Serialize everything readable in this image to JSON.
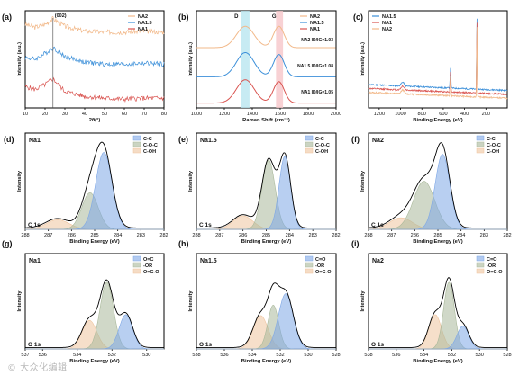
{
  "watermark": "© 大众化编辑",
  "colors": {
    "NA2": "#f2b98a",
    "NA1.5": "#3b8fd9",
    "NA1": "#d9534f",
    "CC": "#7ea7e6",
    "COC": "#a9b89a",
    "COH": "#efc49e",
    "dband": "#b9e6f0",
    "gband": "#f6c5c9"
  },
  "chart_data": [
    {
      "id": "a",
      "panel_label": "(a)",
      "type": "line",
      "xlabel": "2θ(°)",
      "ylabel": "Intensity (a.u.)",
      "xlim": [
        10,
        80
      ],
      "xticks": [
        10,
        20,
        30,
        40,
        50,
        60,
        70,
        80
      ],
      "annotation": "(002)",
      "annotation_x": 24,
      "legend": [
        "NA2",
        "NA1.5",
        "NA1"
      ],
      "series": [
        {
          "name": "NA2",
          "x": [
            10,
            15,
            20,
            24,
            30,
            40,
            50,
            60,
            70,
            80
          ],
          "y": [
            0.86,
            0.83,
            0.86,
            0.92,
            0.84,
            0.79,
            0.78,
            0.78,
            0.79,
            0.78
          ]
        },
        {
          "name": "NA1.5",
          "x": [
            10,
            15,
            20,
            24,
            30,
            40,
            50,
            60,
            70,
            80
          ],
          "y": [
            0.52,
            0.5,
            0.56,
            0.62,
            0.53,
            0.47,
            0.45,
            0.45,
            0.46,
            0.45
          ]
        },
        {
          "name": "NA1",
          "x": [
            10,
            15,
            20,
            24,
            30,
            40,
            50,
            60,
            70,
            80
          ],
          "y": [
            0.22,
            0.19,
            0.24,
            0.3,
            0.17,
            0.12,
            0.1,
            0.09,
            0.1,
            0.1
          ]
        }
      ]
    },
    {
      "id": "b",
      "panel_label": "(b)",
      "type": "line",
      "xlabel": "Raman Shift (cm⁻¹)",
      "ylabel": "Intensity (a.u.)",
      "xlim": [
        1000,
        2000
      ],
      "xticks": [
        1000,
        1200,
        1400,
        1600,
        1800,
        2000
      ],
      "band_labels": [
        "D",
        "G"
      ],
      "bands": [
        [
          1320,
          1380
        ],
        [
          1570,
          1620
        ]
      ],
      "legend": [
        "NA2",
        "NA1.5",
        "NA1"
      ],
      "ratio_labels": [
        "NA2 ID/IG=1.03",
        "NA1.5 ID/IG=1.08",
        "NA1 ID/IG=1.05"
      ],
      "series": [
        {
          "name": "NA2",
          "offset": 0.62,
          "d": 1350,
          "g": 1590,
          "dh": 0.22,
          "gh": 0.22
        },
        {
          "name": "NA1.5",
          "offset": 0.32,
          "d": 1350,
          "g": 1590,
          "dh": 0.25,
          "gh": 0.23
        },
        {
          "name": "NA1",
          "offset": 0.05,
          "d": 1350,
          "g": 1590,
          "dh": 0.24,
          "gh": 0.22
        }
      ]
    },
    {
      "id": "c",
      "panel_label": "(c)",
      "type": "line",
      "xlabel": "Binding Energy (eV)",
      "ylabel": "Intensity (a.u.)",
      "xlim": [
        1300,
        0
      ],
      "xticks": [
        1200,
        1000,
        800,
        600,
        400,
        200
      ],
      "legend": [
        "NA1.5",
        "NA1",
        "NA2"
      ],
      "series": [
        {
          "name": "NA1.5",
          "base": 0.18
        },
        {
          "name": "NA1",
          "base": 0.14
        },
        {
          "name": "NA2",
          "base": 0.1
        }
      ]
    },
    {
      "id": "d",
      "panel_label": "(d)",
      "type": "area",
      "sample": "Na1",
      "core": "C 1s",
      "xlabel": "Binding Energy (eV)",
      "ylabel": "Intensity",
      "xlim": [
        288,
        282
      ],
      "xticks": [
        288,
        287,
        286,
        285,
        284,
        283,
        282
      ],
      "legend": [
        "C-C",
        "C-O-C",
        "C-OH"
      ],
      "peaks": [
        {
          "name": "C-C",
          "c": 284.6,
          "h": 0.8,
          "w": 0.5
        },
        {
          "name": "C-O-C",
          "c": 285.2,
          "h": 0.38,
          "w": 0.5
        },
        {
          "name": "C-OH",
          "c": 286.6,
          "h": 0.1,
          "w": 0.7
        }
      ]
    },
    {
      "id": "e",
      "panel_label": "(e)",
      "type": "area",
      "sample": "Na1.5",
      "core": "C 1s",
      "xlabel": "Binding Energy (eV)",
      "ylabel": "Intensity",
      "xlim": [
        288,
        282
      ],
      "xticks": [
        288,
        287,
        286,
        285,
        284,
        283,
        282
      ],
      "legend": [
        "C-C",
        "C-O-C",
        "C-OH"
      ],
      "peaks": [
        {
          "name": "C-C",
          "c": 284.2,
          "h": 0.76,
          "w": 0.35
        },
        {
          "name": "C-O-C",
          "c": 284.9,
          "h": 0.72,
          "w": 0.4
        },
        {
          "name": "C-OH",
          "c": 286.0,
          "h": 0.14,
          "w": 0.6
        }
      ]
    },
    {
      "id": "f",
      "panel_label": "(f)",
      "type": "area",
      "sample": "Na2",
      "core": "C 1s",
      "xlabel": "Binding Energy (eV)",
      "ylabel": "Intensity",
      "xlim": [
        288,
        282
      ],
      "xticks": [
        288,
        287,
        286,
        285,
        284,
        283,
        282
      ],
      "legend": [
        "C-C",
        "C-O-C",
        "C-OH"
      ],
      "peaks": [
        {
          "name": "C-C",
          "c": 284.8,
          "h": 0.78,
          "w": 0.45
        },
        {
          "name": "C-O-C",
          "c": 285.6,
          "h": 0.5,
          "w": 0.65
        },
        {
          "name": "C-OH",
          "c": 286.6,
          "h": 0.12,
          "w": 0.7
        }
      ]
    },
    {
      "id": "g",
      "panel_label": "(g)",
      "type": "area",
      "sample": "Na1",
      "core": "O 1s",
      "xlabel": "Binding Energy (eV)",
      "ylabel": "Intensity",
      "xlim": [
        537,
        529
      ],
      "xticks": [
        537,
        536,
        534,
        532,
        530
      ],
      "legend": [
        "O=C",
        "-OR",
        "O=C-O"
      ],
      "peaks": [
        {
          "name": "O=C",
          "c": 531.2,
          "h": 0.36,
          "w": 0.55
        },
        {
          "name": "-OR",
          "c": 532.3,
          "h": 0.7,
          "w": 0.55
        },
        {
          "name": "O=C-O",
          "c": 533.3,
          "h": 0.3,
          "w": 0.6
        }
      ]
    },
    {
      "id": "h",
      "panel_label": "(h)",
      "type": "area",
      "sample": "Na1.5",
      "core": "O 1s",
      "xlabel": "Binding Energy (eV)",
      "ylabel": "Intensity",
      "xlim": [
        538,
        528
      ],
      "xticks": [
        538,
        536,
        534,
        532,
        530,
        528
      ],
      "legend": [
        "C=O",
        "-OR",
        "O=C-O"
      ],
      "peaks": [
        {
          "name": "C=O",
          "c": 531.6,
          "h": 0.58,
          "w": 0.75
        },
        {
          "name": "-OR",
          "c": 532.5,
          "h": 0.46,
          "w": 0.55
        },
        {
          "name": "O=C-O",
          "c": 533.4,
          "h": 0.35,
          "w": 0.75
        }
      ]
    },
    {
      "id": "i",
      "panel_label": "(i)",
      "type": "area",
      "sample": "Na2",
      "core": "O 1s",
      "xlabel": "Binding Energy (eV)",
      "ylabel": "Intensity",
      "xlim": [
        538,
        528
      ],
      "xticks": [
        538,
        536,
        534,
        532,
        530,
        528
      ],
      "legend": [
        "C=O",
        "-OR",
        "O=C-O"
      ],
      "peaks": [
        {
          "name": "C=O",
          "c": 531.2,
          "h": 0.24,
          "w": 0.6
        },
        {
          "name": "-OR",
          "c": 532.2,
          "h": 0.7,
          "w": 0.55
        },
        {
          "name": "O=C-O",
          "c": 533.2,
          "h": 0.36,
          "w": 0.65
        }
      ]
    }
  ]
}
